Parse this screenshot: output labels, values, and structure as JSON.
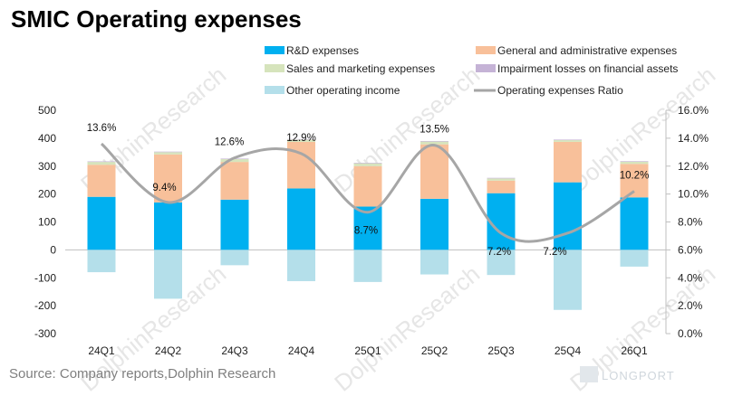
{
  "title": "SMIC Operating expenses",
  "source": "Source: Company reports,Dolphin Research",
  "watermark": "DolphinResearch",
  "brand": "LONGPORT",
  "colors": {
    "rd": "#00b0f0",
    "ga": "#f8c09a",
    "sales": "#d6e4bc",
    "impairment": "#c5b3d6",
    "other": "#b4dfea",
    "ratio": "#a6a6a6"
  },
  "legend": [
    {
      "key": "rd",
      "label": "R&D expenses",
      "kind": "box"
    },
    {
      "key": "ga",
      "label": "General and administrative expenses",
      "kind": "box"
    },
    {
      "key": "sales",
      "label": "Sales and marketing expenses",
      "kind": "box"
    },
    {
      "key": "impairment",
      "label": "Impairment losses on financial assets",
      "kind": "box"
    },
    {
      "key": "other",
      "label": "Other operating income",
      "kind": "box"
    },
    {
      "key": "ratio",
      "label": "Operating expenses Ratio",
      "kind": "line"
    }
  ],
  "chart_data": {
    "type": "bar",
    "stacked": true,
    "categories": [
      "24Q1",
      "24Q2",
      "24Q3",
      "24Q4",
      "25Q1",
      "25Q2",
      "25Q3",
      "25Q4",
      "26Q1"
    ],
    "series": [
      {
        "key": "rd",
        "name": "R&D expenses",
        "values": [
          190,
          170,
          180,
          220,
          155,
          183,
          203,
          242,
          188
        ]
      },
      {
        "key": "ga",
        "name": "General and administrative expenses",
        "values": [
          115,
          172,
          135,
          167,
          145,
          195,
          45,
          145,
          120
        ]
      },
      {
        "key": "sales",
        "name": "Sales and marketing expenses",
        "values": [
          10,
          8,
          10,
          8,
          10,
          10,
          8,
          6,
          8
        ]
      },
      {
        "key": "impairment",
        "name": "Impairment losses on financial assets",
        "values": [
          2,
          2,
          2,
          2,
          2,
          2,
          2,
          2,
          2
        ]
      },
      {
        "key": "other",
        "name": "Other operating income",
        "values": [
          -80,
          -175,
          -55,
          -112,
          -115,
          -88,
          -90,
          -215,
          -60
        ]
      }
    ],
    "line": {
      "key": "ratio",
      "name": "Operating expenses Ratio",
      "values": [
        13.6,
        9.4,
        12.6,
        12.9,
        8.7,
        13.5,
        7.2,
        7.2,
        10.2
      ],
      "labels": [
        "13.6%",
        "9.4%",
        "12.6%",
        "12.9%",
        "8.7%",
        "13.5%",
        "7.2%",
        "7.2%",
        "10.2%"
      ]
    },
    "y_left": {
      "min": -300,
      "max": 500,
      "ticks": [
        500,
        400,
        300,
        200,
        100,
        0,
        -100,
        -200,
        -300
      ]
    },
    "y_right": {
      "min": 0,
      "max": 16,
      "ticks": [
        "16.0%",
        "14.0%",
        "12.0%",
        "10.0%",
        "8.0%",
        "6.0%",
        "4.0%",
        "2.0%",
        "0.0%"
      ]
    },
    "grid": false,
    "legend_position": "top"
  }
}
